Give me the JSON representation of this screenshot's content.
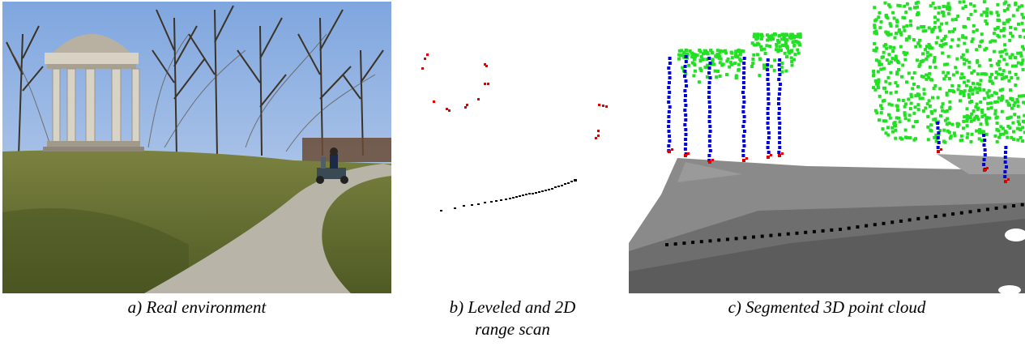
{
  "figure": {
    "captions": {
      "a": "a) Real environment",
      "b_line1": "b) Leveled and 2D",
      "b_line2": "range scan",
      "c": "c) Segmented 3D point cloud"
    },
    "colors": {
      "sky": "#8fb4e6",
      "grass": "#6f7a36",
      "path": "#b8b4aa",
      "monument": "#c9c2b3",
      "scan_red": "#e00000",
      "scan_black": "#000000",
      "trunk_blue": "#0000dd",
      "foliage_green": "#22e022",
      "ground_gray": "#808080"
    }
  }
}
